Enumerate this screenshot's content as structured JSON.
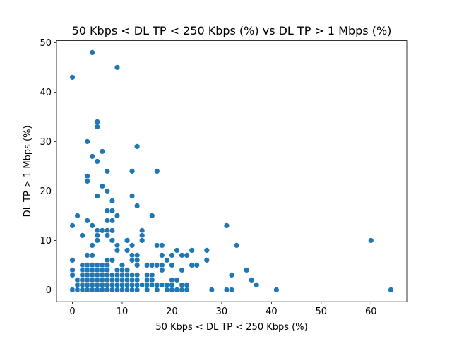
{
  "chart_data": {
    "type": "scatter",
    "title": "50 Kbps < DL TP < 250 Kbps (%) vs DL TP > 1 Mbps (%)",
    "xlabel": "50 Kbps < DL TP < 250 Kbps (%)",
    "ylabel": "DL TP > 1 Mbps (%)",
    "xlim": [
      -3.2,
      67.2
    ],
    "ylim": [
      -2.4,
      50.4
    ],
    "xticks": [
      0,
      10,
      20,
      30,
      40,
      50,
      60
    ],
    "yticks": [
      0,
      10,
      20,
      30,
      40,
      50
    ],
    "grid": false,
    "color": "#1f77b4",
    "points": [
      [
        0,
        43
      ],
      [
        4,
        48
      ],
      [
        9,
        45
      ],
      [
        0,
        13
      ],
      [
        0,
        6
      ],
      [
        0,
        4
      ],
      [
        0,
        3
      ],
      [
        0,
        0
      ],
      [
        1,
        15
      ],
      [
        1,
        2
      ],
      [
        1,
        1
      ],
      [
        1,
        0
      ],
      [
        2,
        11
      ],
      [
        2,
        5
      ],
      [
        2,
        4
      ],
      [
        2,
        3
      ],
      [
        2,
        2
      ],
      [
        2,
        1
      ],
      [
        2,
        0
      ],
      [
        3,
        30
      ],
      [
        3,
        23
      ],
      [
        3,
        22
      ],
      [
        3,
        14
      ],
      [
        3,
        7
      ],
      [
        3,
        5
      ],
      [
        3,
        4
      ],
      [
        3,
        3
      ],
      [
        3,
        2
      ],
      [
        3,
        1
      ],
      [
        3,
        0
      ],
      [
        4,
        27
      ],
      [
        4,
        13
      ],
      [
        4,
        9
      ],
      [
        4,
        7
      ],
      [
        4,
        5
      ],
      [
        4,
        4
      ],
      [
        4,
        3
      ],
      [
        4,
        2
      ],
      [
        4,
        1
      ],
      [
        4,
        0
      ],
      [
        5,
        34
      ],
      [
        5,
        33
      ],
      [
        5,
        26
      ],
      [
        5,
        19
      ],
      [
        5,
        12
      ],
      [
        5,
        11
      ],
      [
        5,
        10
      ],
      [
        5,
        5
      ],
      [
        5,
        4
      ],
      [
        5,
        3
      ],
      [
        5,
        2
      ],
      [
        5,
        1
      ],
      [
        5,
        0
      ],
      [
        6,
        28
      ],
      [
        6,
        21
      ],
      [
        6,
        12
      ],
      [
        6,
        5
      ],
      [
        6,
        4
      ],
      [
        6,
        3
      ],
      [
        6,
        2
      ],
      [
        6,
        1
      ],
      [
        6,
        0
      ],
      [
        7,
        24
      ],
      [
        7,
        20
      ],
      [
        7,
        16
      ],
      [
        7,
        14
      ],
      [
        7,
        12
      ],
      [
        7,
        11
      ],
      [
        7,
        6
      ],
      [
        7,
        5
      ],
      [
        7,
        4
      ],
      [
        7,
        3
      ],
      [
        7,
        2
      ],
      [
        7,
        1
      ],
      [
        7,
        0
      ],
      [
        8,
        18
      ],
      [
        8,
        16
      ],
      [
        8,
        14
      ],
      [
        8,
        12
      ],
      [
        8,
        10
      ],
      [
        8,
        6
      ],
      [
        8,
        3
      ],
      [
        8,
        2
      ],
      [
        8,
        1
      ],
      [
        8,
        0
      ],
      [
        9,
        15
      ],
      [
        9,
        9
      ],
      [
        9,
        8
      ],
      [
        9,
        4
      ],
      [
        9,
        3
      ],
      [
        9,
        2
      ],
      [
        9,
        1
      ],
      [
        9,
        0
      ],
      [
        10,
        5
      ],
      [
        10,
        4
      ],
      [
        10,
        3
      ],
      [
        10,
        2
      ],
      [
        10,
        1
      ],
      [
        10,
        0
      ],
      [
        11,
        10
      ],
      [
        11,
        8
      ],
      [
        11,
        4
      ],
      [
        11,
        3
      ],
      [
        11,
        2
      ],
      [
        11,
        1
      ],
      [
        11,
        0
      ],
      [
        12,
        24
      ],
      [
        12,
        19
      ],
      [
        12,
        9
      ],
      [
        12,
        7
      ],
      [
        12,
        6
      ],
      [
        12,
        3
      ],
      [
        12,
        2
      ],
      [
        12,
        1
      ],
      [
        12,
        0
      ],
      [
        13,
        29
      ],
      [
        13,
        17
      ],
      [
        13,
        7
      ],
      [
        13,
        6
      ],
      [
        13,
        5
      ],
      [
        13,
        3
      ],
      [
        13,
        2
      ],
      [
        13,
        1
      ],
      [
        13,
        0
      ],
      [
        14,
        12
      ],
      [
        14,
        11
      ],
      [
        14,
        10
      ],
      [
        14,
        1
      ],
      [
        15,
        5
      ],
      [
        15,
        3
      ],
      [
        15,
        2
      ],
      [
        15,
        1
      ],
      [
        15,
        0
      ],
      [
        16,
        15
      ],
      [
        16,
        5
      ],
      [
        16,
        3
      ],
      [
        16,
        2
      ],
      [
        16,
        1
      ],
      [
        17,
        24
      ],
      [
        17,
        9
      ],
      [
        17,
        5
      ],
      [
        17,
        1
      ],
      [
        17,
        0
      ],
      [
        18,
        9
      ],
      [
        18,
        7
      ],
      [
        18,
        5
      ],
      [
        18,
        4
      ],
      [
        18,
        1
      ],
      [
        19,
        6
      ],
      [
        19,
        1
      ],
      [
        19,
        0
      ],
      [
        20,
        7
      ],
      [
        20,
        5
      ],
      [
        20,
        2
      ],
      [
        20,
        1
      ],
      [
        20,
        0
      ],
      [
        21,
        8
      ],
      [
        21,
        2
      ],
      [
        21,
        0
      ],
      [
        22,
        7
      ],
      [
        22,
        4
      ],
      [
        22,
        1
      ],
      [
        22,
        0
      ],
      [
        23,
        7
      ],
      [
        23,
        1
      ],
      [
        23,
        0
      ],
      [
        24,
        8
      ],
      [
        24,
        5
      ],
      [
        25,
        5
      ],
      [
        27,
        8
      ],
      [
        27,
        6
      ],
      [
        28,
        0
      ],
      [
        31,
        13
      ],
      [
        31,
        0
      ],
      [
        32,
        3
      ],
      [
        32,
        0
      ],
      [
        33,
        9
      ],
      [
        35,
        4
      ],
      [
        36,
        2
      ],
      [
        37,
        1
      ],
      [
        41,
        0
      ],
      [
        60,
        10
      ],
      [
        64,
        0
      ]
    ]
  }
}
